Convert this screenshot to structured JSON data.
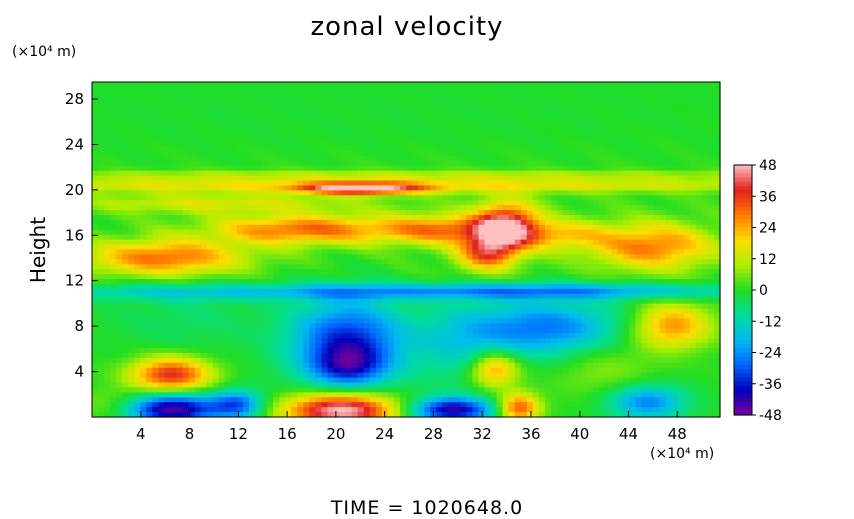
{
  "chart_data": {
    "type": "heatmap",
    "title": "zonal velocity",
    "ylabel": "Height",
    "xlabel": "",
    "x_unit": "(×10⁴ m)",
    "y_unit": "(×10⁴ m)",
    "footer": "TIME  =  1020648.0",
    "xlim": [
      0,
      51.5
    ],
    "ylim": [
      0,
      29.5
    ],
    "x_ticks": [
      4,
      8,
      12,
      16,
      20,
      24,
      28,
      32,
      36,
      40,
      44,
      48
    ],
    "y_ticks": [
      4,
      8,
      12,
      16,
      20,
      24,
      28
    ],
    "colorbar": {
      "ticks": [
        48,
        36,
        24,
        12,
        0,
        -12,
        -24,
        -36,
        -48
      ],
      "range": [
        -48,
        48
      ],
      "colors": [
        "#ffc0c0",
        "#e02020",
        "#ff7a00",
        "#ffdd00",
        "#b0ee00",
        "#22dd22",
        "#00dd99",
        "#00bbee",
        "#0066ff",
        "#0000bb",
        "#7a009a"
      ]
    },
    "background_value": 0,
    "features": [
      {
        "x": 25,
        "y": 17.5,
        "sx": 25,
        "sy": 6.5,
        "v": 2
      },
      {
        "x": 22,
        "y": 26,
        "sx": 25,
        "sy": 3,
        "v": -2
      },
      {
        "x": 22,
        "y": 20.4,
        "sx": 30,
        "sy": 0.45,
        "v": 17
      },
      {
        "x": 22,
        "y": 20.1,
        "sx": 3.5,
        "sy": 0.35,
        "v": 42
      },
      {
        "x": 25,
        "y": 21.3,
        "sx": 30,
        "sy": 0.3,
        "v": 9
      },
      {
        "x": 6,
        "y": 14,
        "sx": 4.5,
        "sy": 1.1,
        "v": 30
      },
      {
        "x": 17,
        "y": 16.5,
        "sx": 5,
        "sy": 0.9,
        "v": 29
      },
      {
        "x": 29,
        "y": 16.5,
        "sx": 4,
        "sy": 0.9,
        "v": 27
      },
      {
        "x": 34,
        "y": 17,
        "sx": 1.8,
        "sy": 1.4,
        "v": 38
      },
      {
        "x": 32.5,
        "y": 14.5,
        "sx": 1.7,
        "sy": 1.1,
        "v": 34
      },
      {
        "x": 46,
        "y": 15,
        "sx": 3.5,
        "sy": 1.4,
        "v": 28
      },
      {
        "x": 38,
        "y": 16,
        "sx": 3,
        "sy": 0.9,
        "v": 18
      },
      {
        "x": 10,
        "y": 18.8,
        "sx": 8,
        "sy": 0.6,
        "v": 13
      },
      {
        "x": 25,
        "y": 11,
        "sx": 26,
        "sy": 0.5,
        "v": -17
      },
      {
        "x": 37,
        "y": 11.2,
        "sx": 10,
        "sy": 0.5,
        "v": -10
      },
      {
        "x": 21,
        "y": 6.5,
        "sx": 3.3,
        "sy": 2.8,
        "v": -36
      },
      {
        "x": 21,
        "y": 4.5,
        "sx": 2,
        "sy": 1.2,
        "v": -18
      },
      {
        "x": 37,
        "y": 7.8,
        "sx": 5,
        "sy": 1.8,
        "v": -28
      },
      {
        "x": 8,
        "y": 9,
        "sx": 5,
        "sy": 2.5,
        "v": -6
      },
      {
        "x": 30,
        "y": 6,
        "sx": 2.5,
        "sy": 2.5,
        "v": -10
      },
      {
        "x": 47.5,
        "y": 8,
        "sx": 2.3,
        "sy": 1.4,
        "v": 28
      },
      {
        "x": 6.5,
        "y": 3.7,
        "sx": 2.3,
        "sy": 1.1,
        "v": 38
      },
      {
        "x": 33,
        "y": 4.2,
        "sx": 1.4,
        "sy": 1.1,
        "v": 28
      },
      {
        "x": 42,
        "y": 4.5,
        "sx": 3,
        "sy": 2,
        "v": 8
      },
      {
        "x": 20.5,
        "y": 0.6,
        "sx": 3.3,
        "sy": 1.1,
        "v": 52
      },
      {
        "x": 6.5,
        "y": 0.7,
        "sx": 2.8,
        "sy": 1.0,
        "v": -46
      },
      {
        "x": 12,
        "y": 1.1,
        "sx": 1.5,
        "sy": 0.9,
        "v": -28
      },
      {
        "x": 29.5,
        "y": 0.6,
        "sx": 2.5,
        "sy": 0.8,
        "v": -42
      },
      {
        "x": 35,
        "y": 0.8,
        "sx": 1.2,
        "sy": 0.9,
        "v": 34
      },
      {
        "x": 45.5,
        "y": 1.3,
        "sx": 2.3,
        "sy": 1.1,
        "v": -26
      },
      {
        "x": 2,
        "y": 1,
        "sx": 2,
        "sy": 1,
        "v": 10
      }
    ]
  }
}
